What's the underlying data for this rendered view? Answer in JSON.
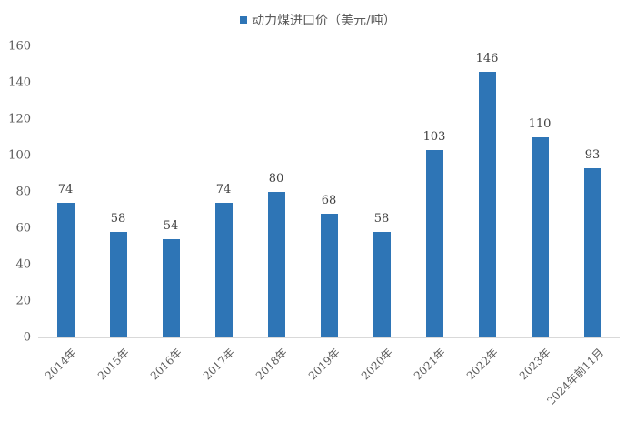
{
  "chart_data": {
    "type": "bar",
    "title": "",
    "legend": [
      {
        "label": "动力煤进口价（美元/吨）",
        "color": "#2E75B6"
      }
    ],
    "legend_position": "top",
    "categories": [
      "2014年",
      "2015年",
      "2016年",
      "2017年",
      "2018年",
      "2019年",
      "2020年",
      "2021年",
      "2022年",
      "2023年",
      "2024年前11月"
    ],
    "series": [
      {
        "name": "动力煤进口价（美元/吨）",
        "values": [
          74,
          58,
          54,
          74,
          80,
          68,
          58,
          103,
          146,
          110,
          93
        ]
      }
    ],
    "xlabel": "",
    "ylabel": "",
    "ylim": [
      0,
      160
    ],
    "yticks": [
      0,
      20,
      40,
      60,
      80,
      100,
      120,
      140,
      160
    ],
    "grid": false,
    "data_labels": true
  },
  "legend": {
    "label": "动力煤进口价（美元/吨）"
  },
  "yaxis": {
    "ticks": [
      "0",
      "20",
      "40",
      "60",
      "80",
      "100",
      "120",
      "140",
      "160"
    ]
  }
}
